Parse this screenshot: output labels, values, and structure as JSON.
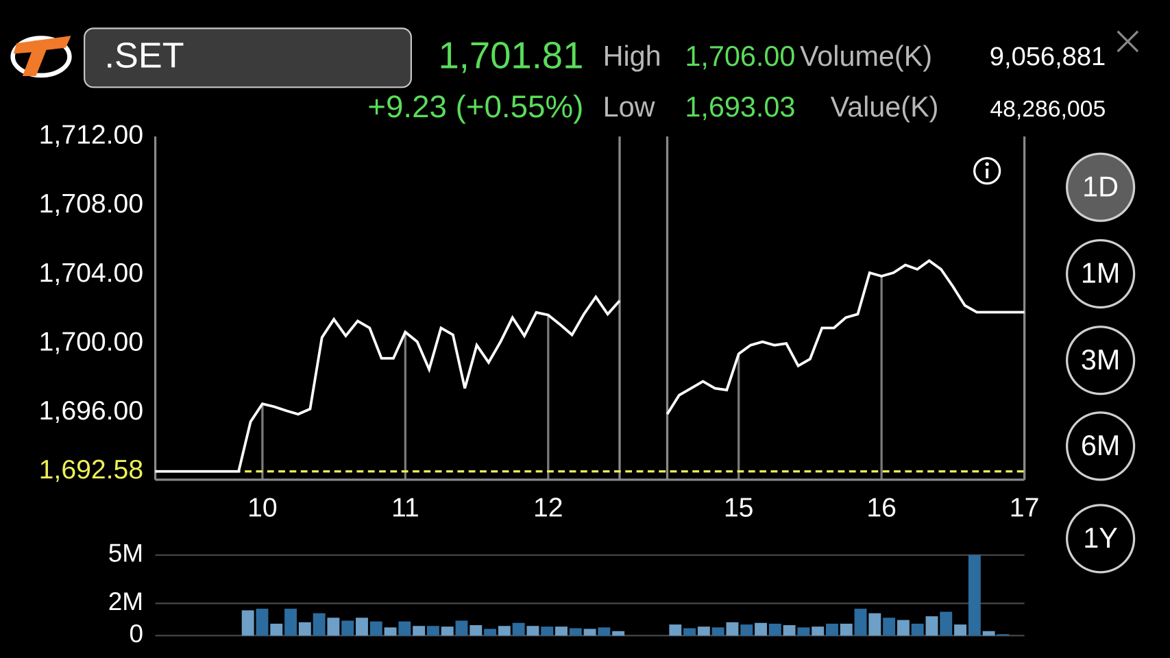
{
  "header": {
    "symbol": ".SET",
    "last": "1,701.81",
    "change": "+9.23 (+0.55%)",
    "high_label": "High",
    "high": "1,706.00",
    "volume_label": "Volume(K)",
    "volume": "9,056,881",
    "low_label": "Low",
    "low": "1,693.03",
    "value_label": "Value(K)",
    "value": "48,286,005"
  },
  "periods": [
    "1D",
    "1M",
    "3M",
    "6M",
    "1Y"
  ],
  "chart_data": [
    {
      "type": "line",
      "categories": [
        null,
        null,
        null,
        null,
        null,
        null,
        null,
        null,
        null,
        "10",
        null,
        null,
        null,
        null,
        null,
        null,
        null,
        null,
        null,
        null,
        null,
        "11",
        null,
        null,
        null,
        null,
        null,
        null,
        null,
        null,
        null,
        null,
        null,
        "12",
        null,
        null,
        null,
        null,
        null,
        null,
        null,
        null,
        null,
        null,
        null,
        null,
        null,
        null,
        null,
        "15",
        null,
        null,
        null,
        null,
        null,
        null,
        null,
        null,
        null,
        null,
        null,
        "16",
        null,
        null,
        null,
        null,
        null,
        null,
        null,
        null,
        null,
        null,
        null,
        "17"
      ],
      "values": [
        1692.58,
        1692.58,
        1692.58,
        1692.58,
        1692.58,
        1692.58,
        1692.58,
        1692.58,
        1695.46,
        1696.5,
        1696.33,
        1696.1,
        1695.9,
        1696.2,
        1700.35,
        1701.4,
        1700.44,
        1701.3,
        1700.9,
        1699.14,
        1699.14,
        1700.66,
        1700.1,
        1698.5,
        1700.9,
        1700.5,
        1697.4,
        1699.9,
        1698.9,
        1700.1,
        1701.5,
        1700.44,
        1701.8,
        1701.65,
        1701.1,
        1700.5,
        1701.7,
        1702.7,
        1701.7,
        1702.48,
        null,
        null,
        null,
        1695.9,
        1697.0,
        1697.4,
        1697.8,
        1697.4,
        1697.3,
        1699.4,
        1699.9,
        1700.1,
        1699.9,
        1700.0,
        1698.7,
        1699.1,
        1700.9,
        1700.9,
        1701.5,
        1701.7,
        1704.1,
        1703.9,
        1704.1,
        1704.55,
        1704.3,
        1704.8,
        1704.3,
        1703.3,
        1702.2,
        1701.81,
        1701.81,
        1701.81,
        1701.81,
        1701.81
      ],
      "color": "#ffffff",
      "ylim": [
        1692.1,
        1712
      ],
      "yticks": [
        {
          "value": 1712,
          "label": "1,712.00"
        },
        {
          "value": 1708,
          "label": "1,708.00"
        },
        {
          "value": 1704,
          "label": "1,704.00"
        },
        {
          "value": 1700,
          "label": "1,700.00"
        },
        {
          "value": 1696,
          "label": "1,696.00"
        }
      ],
      "reference_line": {
        "value": 1692.58,
        "label": "1,692.58",
        "color": "#eef05a"
      }
    },
    {
      "type": "bar",
      "values": [
        null,
        null,
        null,
        null,
        null,
        null,
        1570000,
        1670000,
        740000,
        1670000,
        830000,
        1390000,
        1110000,
        930000,
        1110000,
        880000,
        510000,
        880000,
        600000,
        600000,
        560000,
        930000,
        650000,
        420000,
        600000,
        790000,
        600000,
        560000,
        560000,
        460000,
        420000,
        510000,
        280000,
        null,
        null,
        null,
        690000,
        460000,
        560000,
        510000,
        830000,
        690000,
        790000,
        740000,
        650000,
        510000,
        560000,
        740000,
        740000,
        1670000,
        1390000,
        1110000,
        970000,
        740000,
        1200000,
        1480000,
        690000,
        5000000,
        280000,
        90000,
        null
      ],
      "colors": [
        "#6e9fc6",
        "#2d6c9e"
      ],
      "ylim": [
        0,
        5000000
      ],
      "yticks": [
        {
          "value": 5000000,
          "label": "5M"
        },
        {
          "value": 2000000,
          "label": "2M"
        },
        0
      ],
      "grid": true
    }
  ]
}
